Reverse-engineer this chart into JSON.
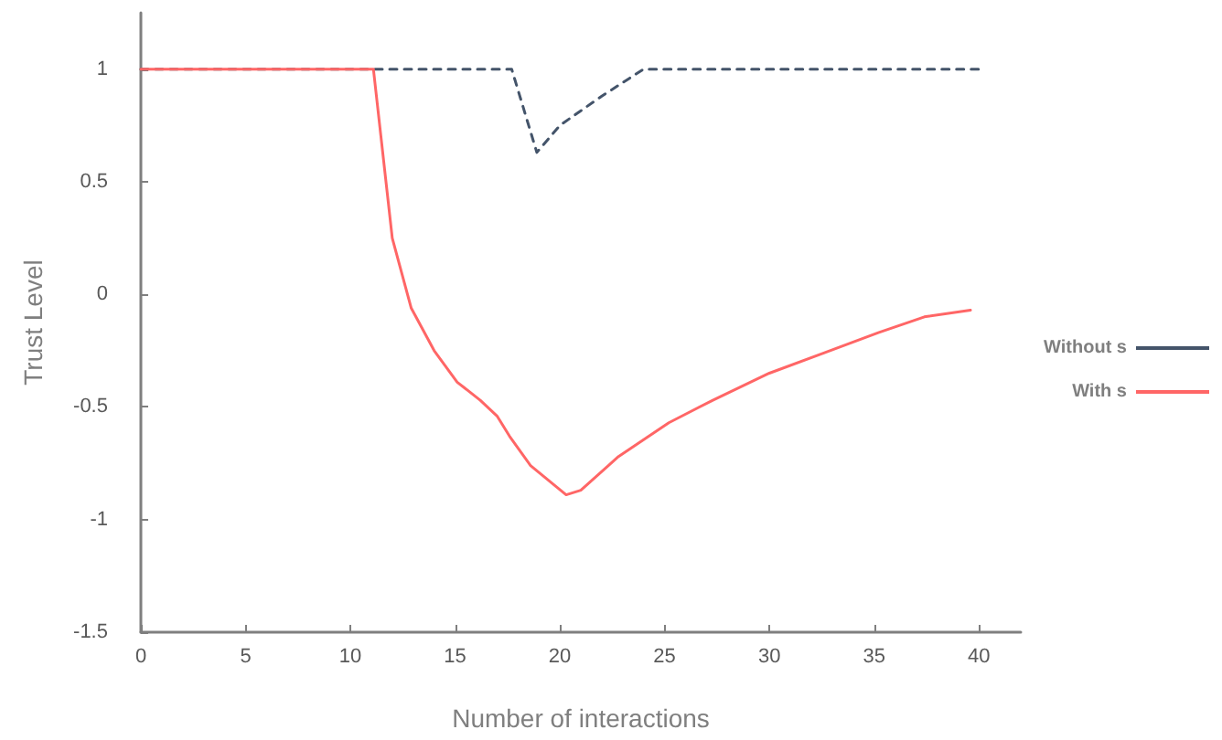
{
  "chart_data": {
    "type": "line",
    "xlabel": "Number of interactions",
    "ylabel": "Trust Level",
    "xlim": [
      0,
      42
    ],
    "xticks": [
      0,
      5,
      10,
      15,
      20,
      25,
      30,
      35,
      40
    ],
    "ylim": [
      -1.5,
      1.25
    ],
    "yticks": [
      -1.5,
      -1,
      -0.5,
      0,
      0.5,
      1
    ],
    "grid": false,
    "legend": "right",
    "marker": "none",
    "series": [
      {
        "name": "Without s",
        "color": "#44546a",
        "line_style": "dashed",
        "x": [
          0,
          17.7,
          18.9,
          20,
          22,
          24,
          40
        ],
        "values": [
          1,
          1,
          0.63,
          0.75,
          0.88,
          1,
          1
        ]
      },
      {
        "name": "With s",
        "color": "#ff6666",
        "line_style": "solid",
        "x": [
          0,
          11.1,
          12,
          12.9,
          14,
          15.1,
          16.2,
          17,
          17.6,
          18.6,
          20.3,
          21,
          22.8,
          25.2,
          27.3,
          30,
          32.6,
          35.2,
          37.4,
          39.6
        ],
        "values": [
          1,
          1,
          0.25,
          -0.06,
          -0.25,
          -0.39,
          -0.47,
          -0.54,
          -0.63,
          -0.76,
          -0.89,
          -0.87,
          -0.72,
          -0.57,
          -0.47,
          -0.35,
          -0.26,
          -0.17,
          -0.1,
          -0.07
        ]
      }
    ]
  }
}
